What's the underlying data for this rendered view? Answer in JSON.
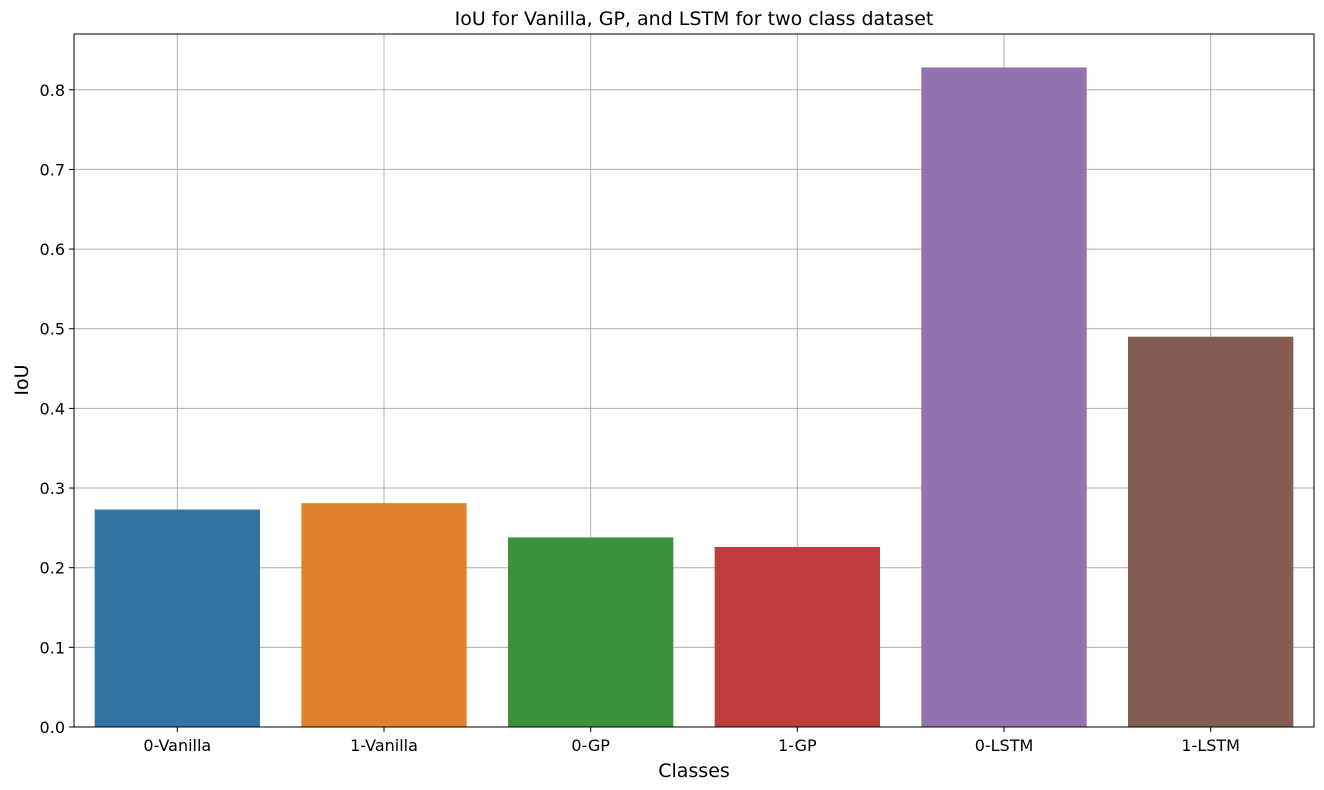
{
  "chart_data": {
    "type": "bar",
    "title": "IoU for Vanilla, GP, and LSTM for two class dataset",
    "xlabel": "Classes",
    "ylabel": "IoU",
    "categories": [
      "0-Vanilla",
      "1-Vanilla",
      "0-GP",
      "1-GP",
      "0-LSTM",
      "1-LSTM"
    ],
    "values": [
      0.273,
      0.281,
      0.238,
      0.226,
      0.828,
      0.49
    ],
    "colors": [
      "#3274a1",
      "#e1812c",
      "#3a923a",
      "#c03d3e",
      "#9372b2",
      "#845b53"
    ],
    "ylim": [
      0,
      0.87
    ],
    "yticks": [
      0.0,
      0.1,
      0.2,
      0.3,
      0.4,
      0.5,
      0.6,
      0.7,
      0.8
    ],
    "ytick_labels": [
      "0.0",
      "0.1",
      "0.2",
      "0.3",
      "0.4",
      "0.5",
      "0.6",
      "0.7",
      "0.8"
    ],
    "grid": true,
    "legend": false
  }
}
